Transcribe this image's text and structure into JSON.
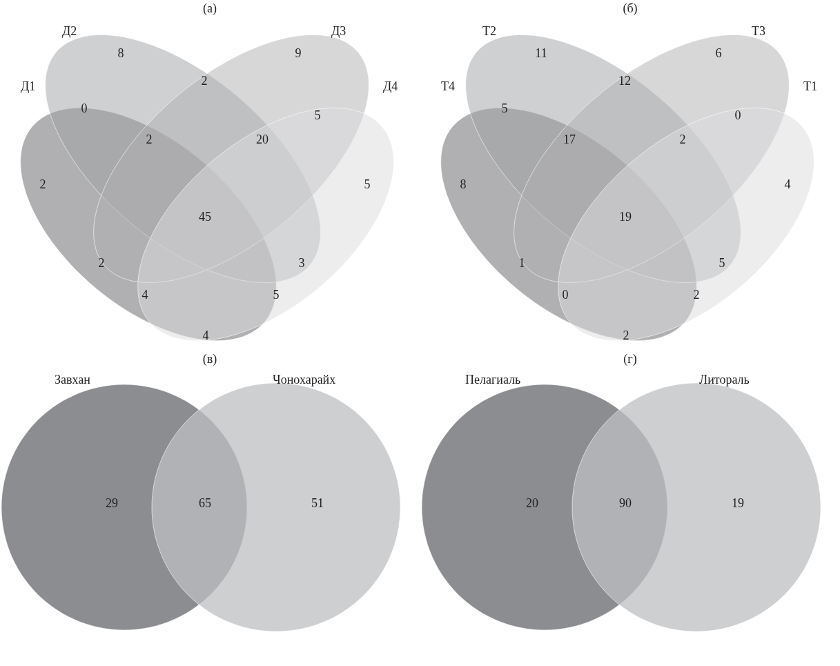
{
  "chart_data": [
    {
      "type": "other",
      "title": "(а)",
      "annotations": [
        "Д1",
        "Д2",
        "Д3",
        "Д4"
      ],
      "categories": [
        null,
        null,
        null,
        null,
        null,
        null,
        null,
        null,
        null,
        null,
        null,
        null,
        null,
        null,
        null
      ],
      "values": [
        8,
        9,
        2,
        0,
        5,
        2,
        20,
        2,
        5,
        45,
        2,
        3,
        4,
        5,
        4
      ],
      "data_labels": true
    },
    {
      "type": "other",
      "title": "(б)",
      "annotations": [
        "Т4",
        "Т2",
        "Т3",
        "Т1"
      ],
      "categories": [
        null,
        null,
        null,
        null,
        null,
        null,
        null,
        null,
        null,
        null,
        null,
        null,
        null,
        null,
        null
      ],
      "values": [
        11,
        6,
        12,
        5,
        0,
        17,
        2,
        8,
        4,
        19,
        1,
        5,
        0,
        2,
        2
      ],
      "data_labels": true
    },
    {
      "type": "other",
      "title": "(в)",
      "annotations": [
        "Завхан",
        "Чонохарайх"
      ],
      "categories": [
        null,
        null,
        null
      ],
      "values": [
        29,
        65,
        51
      ],
      "data_labels": true
    },
    {
      "type": "other",
      "title": "(г)",
      "annotations": [
        "Пелагиаль",
        "Литораль"
      ],
      "categories": [
        null,
        null,
        null
      ],
      "values": [
        20,
        90,
        19
      ],
      "data_labels": true
    }
  ]
}
